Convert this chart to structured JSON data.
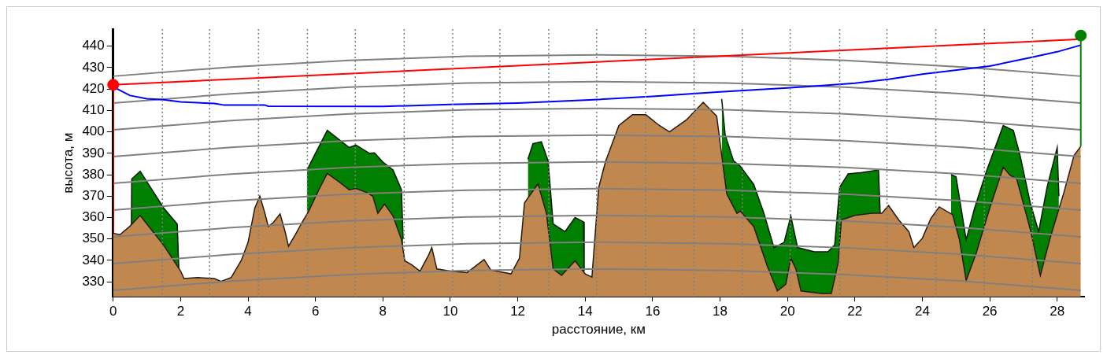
{
  "chart_data": {
    "type": "area",
    "xlabel": "расстояние, км",
    "ylabel": "высота, м",
    "xlim": [
      0,
      28.8
    ],
    "ylim": [
      323,
      448
    ],
    "xticks": [
      0,
      2,
      4,
      6,
      8,
      10,
      12,
      14,
      16,
      18,
      20,
      22,
      24,
      26,
      28
    ],
    "yticks": [
      330,
      340,
      350,
      360,
      370,
      380,
      390,
      400,
      410,
      420,
      430,
      440
    ],
    "legend": false,
    "grid": false,
    "ref_lines": [
      {
        "axis": "x",
        "value": 1.46,
        "color": "#808080",
        "line_style": "dotted"
      },
      {
        "axis": "x",
        "value": 2.86,
        "color": "#808080",
        "line_style": "dotted"
      },
      {
        "axis": "x",
        "value": 4.31,
        "color": "#808080",
        "line_style": "dotted"
      },
      {
        "axis": "x",
        "value": 5.76,
        "color": "#808080",
        "line_style": "dotted"
      },
      {
        "axis": "x",
        "value": 7.18,
        "color": "#808080",
        "line_style": "dotted"
      },
      {
        "axis": "x",
        "value": 8.63,
        "color": "#808080",
        "line_style": "dotted"
      },
      {
        "axis": "x",
        "value": 10.07,
        "color": "#808080",
        "line_style": "dotted"
      },
      {
        "axis": "x",
        "value": 11.47,
        "color": "#808080",
        "line_style": "dotted"
      },
      {
        "axis": "x",
        "value": 12.92,
        "color": "#808080",
        "line_style": "dotted"
      },
      {
        "axis": "x",
        "value": 14.34,
        "color": "#808080",
        "line_style": "dotted"
      },
      {
        "axis": "x",
        "value": 15.79,
        "color": "#808080",
        "line_style": "dotted"
      },
      {
        "axis": "x",
        "value": 17.23,
        "color": "#808080",
        "line_style": "dotted"
      },
      {
        "axis": "x",
        "value": 18.66,
        "color": "#808080",
        "line_style": "dotted"
      },
      {
        "axis": "x",
        "value": 20.08,
        "color": "#808080",
        "line_style": "dotted"
      },
      {
        "axis": "x",
        "value": 21.55,
        "color": "#808080",
        "line_style": "dotted"
      },
      {
        "axis": "x",
        "value": 22.95,
        "color": "#808080",
        "line_style": "dotted"
      },
      {
        "axis": "x",
        "value": 24.4,
        "color": "#808080",
        "line_style": "dotted"
      },
      {
        "axis": "x",
        "value": 25.84,
        "color": "#808080",
        "line_style": "dotted"
      },
      {
        "axis": "x",
        "value": 27.27,
        "color": "#808080",
        "line_style": "dotted"
      }
    ],
    "series": [
      {
        "type": "area",
        "color": "#007f00",
        "x": [
          0.54,
          0.55,
          0.8,
          1.2,
          1.5,
          1.9,
          1.95,
          2.0,
          5.7,
          5.75,
          6,
          6.35,
          6.7,
          7,
          7.2,
          7.6,
          7.75,
          8,
          8.3,
          8.55,
          8.6,
          8.65,
          12.25,
          12.3,
          12.45,
          12.7,
          12.9,
          13.05,
          13.4,
          13.7,
          13.95,
          13.97,
          14.0,
          18.0,
          18.05,
          18.15,
          18.4,
          18.6,
          19,
          19.3,
          19.6,
          19.9,
          20.1,
          20.3,
          20.8,
          21.2,
          21.4,
          21.55,
          21.8,
          22.2,
          22.7,
          22.75,
          22.8,
          24.8,
          24.85,
          25,
          25.3,
          25.55,
          25.9,
          26.4,
          26.7,
          26.9,
          27.2,
          27.45,
          27.7,
          28,
          28.05
        ],
        "values": [
          356,
          378,
          381.6,
          371.8,
          364.4,
          357,
          335,
          null,
          null,
          382.2,
          390,
          400.7,
          396.4,
          392.7,
          393.9,
          390,
          390.2,
          385.9,
          382.2,
          373,
          350,
          null,
          null,
          387.2,
          394.5,
          395.4,
          386.5,
          357,
          353.4,
          360,
          358,
          335,
          null,
          null,
          415.4,
          398.8,
          386.5,
          384,
          375.5,
          362,
          346,
          348.4,
          360.7,
          346,
          344,
          344,
          347.2,
          374.2,
          380.4,
          381,
          382.2,
          362,
          null,
          null,
          380.1,
          379,
          349.7,
          364.4,
          381.6,
          403,
          400.7,
          389,
          366.9,
          353.4,
          374.2,
          392.7,
          370
        ]
      },
      {
        "type": "area",
        "color": "#c0874f",
        "x": [
          0,
          0.2,
          0.5,
          0.8,
          1,
          1.5,
          2,
          2.1,
          2.5,
          3,
          3.2,
          3.5,
          3.8,
          4,
          4.2,
          4.35,
          4.5,
          4.6,
          4.75,
          4.95,
          5.1,
          5.2,
          5.4,
          5.6,
          5.8,
          6.1,
          6.35,
          6.7,
          7,
          7.2,
          7.5,
          7.7,
          7.85,
          8.05,
          8.3,
          8.55,
          8.65,
          8.85,
          9.1,
          9.35,
          9.45,
          9.6,
          10,
          10.5,
          11,
          11.2,
          11.8,
          12.05,
          12.2,
          12.6,
          12.85,
          13.05,
          13.3,
          13.7,
          14,
          14.2,
          14.4,
          14.6,
          15,
          15.4,
          15.8,
          16.2,
          16.5,
          17,
          17.5,
          17.9,
          18.1,
          18.2,
          18.5,
          18.6,
          19,
          19.4,
          19.7,
          19.95,
          20.1,
          20.25,
          20.4,
          21,
          21.3,
          21.5,
          21.6,
          22,
          22.5,
          22.8,
          23,
          23.3,
          23.6,
          23.75,
          24,
          24.25,
          24.5,
          24.9,
          25.1,
          25.3,
          25.6,
          26,
          26.4,
          26.6,
          26.8,
          27.2,
          27.5,
          27.8,
          28.2,
          28.5,
          28.7
        ],
        "values": [
          352.7,
          352,
          356,
          361,
          357,
          347,
          335,
          331.5,
          332,
          331.5,
          330.2,
          332,
          340,
          348.4,
          364.4,
          370,
          362,
          355.8,
          357.7,
          361.7,
          353.4,
          346.6,
          352,
          357.7,
          363,
          373,
          380.6,
          376.7,
          373,
          373.6,
          371.8,
          370,
          362,
          366.3,
          360.7,
          349.7,
          339.8,
          338,
          335,
          342.3,
          346,
          336,
          335,
          334.3,
          340.4,
          335.5,
          333.7,
          341,
          366.9,
          375.7,
          362,
          336,
          333,
          339.8,
          333.7,
          332.2,
          374,
          386,
          403,
          408,
          408,
          403,
          400,
          405.6,
          413.8,
          407.4,
          382.9,
          371,
          362,
          363,
          355.8,
          337.4,
          325.7,
          328.8,
          341,
          336,
          325.7,
          324.5,
          324.5,
          338.6,
          358.9,
          361,
          362,
          362,
          365.6,
          358.9,
          353.4,
          346,
          350.3,
          359.5,
          365,
          361.3,
          349.7,
          330.6,
          343.5,
          364.4,
          383.5,
          379.8,
          378,
          354.6,
          333,
          350.9,
          371.8,
          389,
          393.3
        ]
      },
      {
        "type": "line",
        "color": "#808080",
        "x": [
          0,
          3.5,
          7,
          10.5,
          14.35,
          18.2,
          21.7,
          25.2,
          28.7
        ],
        "values": [
          326,
          330.3,
          333.4,
          335.3,
          336,
          335.3,
          333.4,
          330.3,
          326
        ]
      },
      {
        "type": "line",
        "color": "#808080",
        "x": [
          0,
          3.5,
          7,
          10.5,
          14.35,
          18.2,
          21.7,
          25.2,
          28.7
        ],
        "values": [
          338.5,
          342.8,
          345.9,
          347.8,
          348.5,
          347.8,
          345.9,
          342.8,
          338.5
        ]
      },
      {
        "type": "line",
        "color": "#808080",
        "x": [
          0,
          3.5,
          7,
          10.5,
          14.35,
          18.2,
          21.7,
          25.2,
          28.7
        ],
        "values": [
          351,
          355.3,
          358.4,
          360.3,
          361,
          360.3,
          358.4,
          355.3,
          351
        ]
      },
      {
        "type": "line",
        "color": "#808080",
        "x": [
          0,
          3.5,
          7,
          10.5,
          14.35,
          18.2,
          21.7,
          25.2,
          28.7
        ],
        "values": [
          363.5,
          367.8,
          370.9,
          372.8,
          373.5,
          372.8,
          370.9,
          367.8,
          363.5
        ]
      },
      {
        "type": "line",
        "color": "#808080",
        "x": [
          0,
          3.5,
          7,
          10.5,
          14.35,
          18.2,
          21.7,
          25.2,
          28.7
        ],
        "values": [
          376,
          380.3,
          383.4,
          385.3,
          386,
          385.3,
          383.4,
          380.3,
          376
        ]
      },
      {
        "type": "line",
        "color": "#808080",
        "x": [
          0,
          3.5,
          7,
          10.5,
          14.35,
          18.2,
          21.7,
          25.2,
          28.7
        ],
        "values": [
          388.5,
          392.8,
          395.9,
          397.8,
          398.5,
          397.8,
          395.9,
          392.8,
          388.5
        ]
      },
      {
        "type": "line",
        "color": "#808080",
        "x": [
          0,
          3.5,
          7,
          10.5,
          14.35,
          18.2,
          21.7,
          25.2,
          28.7
        ],
        "values": [
          401,
          405.3,
          408.4,
          410.3,
          411,
          410.3,
          408.4,
          405.3,
          401
        ]
      },
      {
        "type": "line",
        "color": "#808080",
        "x": [
          0,
          3.5,
          7,
          10.5,
          14.35,
          18.2,
          21.7,
          25.2,
          28.7
        ],
        "values": [
          413.5,
          417.8,
          420.9,
          422.8,
          423.5,
          422.8,
          420.9,
          417.8,
          413.5
        ]
      },
      {
        "type": "line",
        "color": "#808080",
        "x": [
          0,
          3.5,
          7,
          10.5,
          14.35,
          18.2,
          21.7,
          25.2,
          28.7
        ],
        "values": [
          426,
          430.3,
          433.4,
          435.3,
          436,
          435.3,
          433.4,
          430.3,
          426
        ]
      },
      {
        "type": "line",
        "color": "#0000ff",
        "x": [
          0,
          0.5,
          1,
          1.5,
          2,
          3,
          3.3,
          4.5,
          4.6,
          8,
          10,
          12,
          14,
          16,
          18,
          20,
          22,
          23,
          24,
          26,
          27.2,
          28,
          28.7
        ],
        "values": [
          421,
          417,
          415.5,
          415,
          414,
          413.3,
          412.5,
          412.5,
          412,
          411.9,
          412.8,
          413.5,
          414.8,
          416.6,
          418.7,
          420.5,
          422.7,
          424.6,
          427,
          430.7,
          434.7,
          437.4,
          440.5
        ]
      },
      {
        "type": "line",
        "color": "#ff0000",
        "x": [
          0,
          28.7
        ],
        "values": [
          422,
          443.3
        ]
      },
      {
        "type": "line",
        "color": "#ff0000",
        "x": [
          0,
          0
        ],
        "values": [
          352.7,
          422
        ]
      },
      {
        "type": "line",
        "color": "#007f00",
        "x": [
          28.7,
          28.7
        ],
        "values": [
          393.3,
          446
        ]
      },
      {
        "type": "scatter",
        "color": "#ff0000",
        "marker": "circle",
        "x": [
          0
        ],
        "values": [
          422
        ]
      },
      {
        "type": "scatter",
        "color": "#007f00",
        "marker": "circle",
        "x": [
          28.7
        ],
        "values": [
          445
        ]
      }
    ]
  }
}
